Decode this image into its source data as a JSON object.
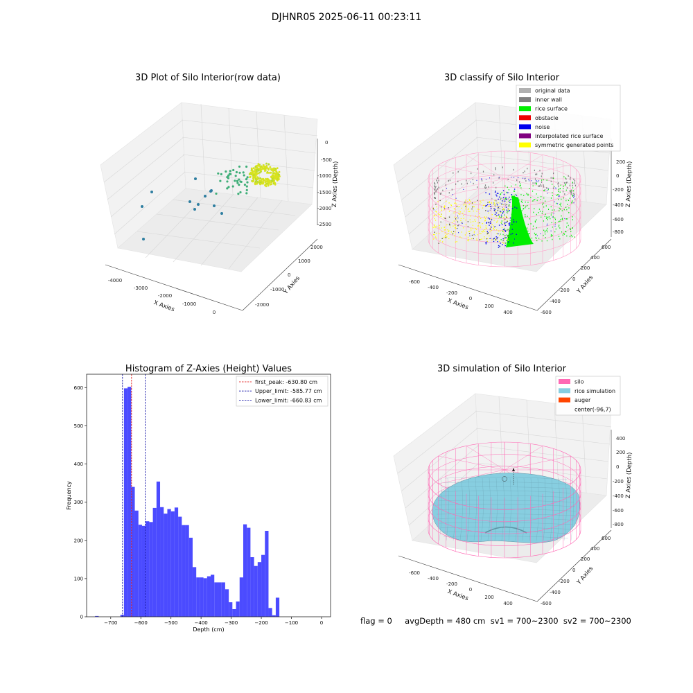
{
  "page": {
    "title": "DJHNR05 2025-06-11 00:23:11"
  },
  "status_line": "flag = 0     avgDepth = 480 cm  sv1 = 700~2300  sv2 = 700~2300",
  "chart_data": [
    {
      "type": "scatter",
      "title": "3D Plot of Silo Interior(row data)",
      "xlabel": "X Axies",
      "ylabel": "Y Axies",
      "zlabel": "Z Axies (Depth)",
      "x_ticks": [
        "-4000",
        "-3000",
        "-2000",
        "-1000",
        "0"
      ],
      "y_ticks": [
        "-2000",
        "-1000",
        "0",
        "1000",
        "2000"
      ],
      "z_ticks": [
        "0",
        "-500",
        "-1000",
        "-1500",
        "-2000",
        "-2500"
      ],
      "colors": {
        "points_far": "#2e7ea0",
        "points_mid": "#3fae78",
        "points_near": "#d8e21e"
      }
    },
    {
      "type": "scatter",
      "title": "3D classify of Silo Interior",
      "xlabel": "X Axies",
      "ylabel": "Y Axies",
      "zlabel": "Z Axies (Depth)",
      "x_ticks": [
        "-600",
        "-400",
        "-200",
        "0",
        "200",
        "400"
      ],
      "y_ticks": [
        "-600",
        "-400",
        "-200",
        "0",
        "200",
        "400",
        "600"
      ],
      "z_ticks": [
        "200",
        "0",
        "-200",
        "-400",
        "-600",
        "-800"
      ],
      "legend_position": "top-right",
      "legend": [
        {
          "label": "original data",
          "color": "#b0b0b0"
        },
        {
          "label": "inner wall",
          "color": "#808080"
        },
        {
          "label": "rice surface",
          "color": "#00ee00"
        },
        {
          "label": "obstacle",
          "color": "#ee0000"
        },
        {
          "label": "noise",
          "color": "#0000ee"
        },
        {
          "label": "interpolated rice surface",
          "color": "#800080"
        },
        {
          "label": "symmetric generated points",
          "color": "#ffff00"
        }
      ],
      "wire_color": "#ff9ec8"
    },
    {
      "type": "bar",
      "title": "Histogram of Z-Axies (Height) Values",
      "xlabel": "Depth (cm)",
      "ylabel": "Frequency",
      "xlim": [
        -780,
        30
      ],
      "ylim": [
        0,
        635
      ],
      "x_ticks": [
        -700,
        -600,
        -500,
        -400,
        -300,
        -200,
        -100,
        0
      ],
      "y_ticks": [
        0,
        100,
        200,
        300,
        400,
        500,
        600
      ],
      "bin_width": 12,
      "bins": [
        {
          "x": -746,
          "v": 2
        },
        {
          "x": -662,
          "v": 5
        },
        {
          "x": -650,
          "v": 598
        },
        {
          "x": -638,
          "v": 602
        },
        {
          "x": -626,
          "v": 340
        },
        {
          "x": -614,
          "v": 278
        },
        {
          "x": -602,
          "v": 241
        },
        {
          "x": -590,
          "v": 238
        },
        {
          "x": -578,
          "v": 250
        },
        {
          "x": -566,
          "v": 248
        },
        {
          "x": -554,
          "v": 285
        },
        {
          "x": -542,
          "v": 354
        },
        {
          "x": -530,
          "v": 287
        },
        {
          "x": -518,
          "v": 270
        },
        {
          "x": -506,
          "v": 282
        },
        {
          "x": -494,
          "v": 276
        },
        {
          "x": -482,
          "v": 286
        },
        {
          "x": -470,
          "v": 262
        },
        {
          "x": -458,
          "v": 240
        },
        {
          "x": -446,
          "v": 240
        },
        {
          "x": -434,
          "v": 207
        },
        {
          "x": -422,
          "v": 130
        },
        {
          "x": -410,
          "v": 103
        },
        {
          "x": -398,
          "v": 103
        },
        {
          "x": -386,
          "v": 101
        },
        {
          "x": -374,
          "v": 106
        },
        {
          "x": -362,
          "v": 110
        },
        {
          "x": -350,
          "v": 90
        },
        {
          "x": -338,
          "v": 90
        },
        {
          "x": -326,
          "v": 90
        },
        {
          "x": -314,
          "v": 72
        },
        {
          "x": -302,
          "v": 38
        },
        {
          "x": -290,
          "v": 20
        },
        {
          "x": -278,
          "v": 40
        },
        {
          "x": -266,
          "v": 103
        },
        {
          "x": -254,
          "v": 242
        },
        {
          "x": -242,
          "v": 233
        },
        {
          "x": -230,
          "v": 156
        },
        {
          "x": -218,
          "v": 133
        },
        {
          "x": -206,
          "v": 143
        },
        {
          "x": -194,
          "v": 162
        },
        {
          "x": -182,
          "v": 225
        },
        {
          "x": -170,
          "v": 23
        },
        {
          "x": -158,
          "v": 4
        },
        {
          "x": -146,
          "v": 50
        }
      ],
      "bar_color": "#4b4bff",
      "vlines": [
        {
          "label": "first_peak: -630.80 cm",
          "x": -630.8,
          "color": "#e00000"
        },
        {
          "label": "Upper_limit: -585.77 cm",
          "x": -585.77,
          "color": "#0000a0"
        },
        {
          "label": "Lower_limit: -660.83 cm",
          "x": -660.83,
          "color": "#0000a0"
        }
      ],
      "legend_position": "top-right"
    },
    {
      "type": "area",
      "title": "3D simulation of Silo Interior",
      "xlabel": "X Axies",
      "ylabel": "Y Axies",
      "zlabel": "Z Axies (Depth)",
      "x_ticks": [
        "-600",
        "-400",
        "-200",
        "0",
        "200",
        "400"
      ],
      "y_ticks": [
        "-600",
        "-400",
        "-200",
        "0",
        "200",
        "400",
        "600"
      ],
      "z_ticks": [
        "400",
        "200",
        "0",
        "-200",
        "-400",
        "-600",
        "-800"
      ],
      "legend_position": "top-right",
      "legend": [
        {
          "label": "silo",
          "color": "#ff69b4"
        },
        {
          "label": "rice simulation",
          "color": "#87cee0"
        },
        {
          "label": "auger",
          "color": "#ff4500"
        },
        {
          "label": "center(-96,7)",
          "color": ""
        }
      ]
    }
  ]
}
